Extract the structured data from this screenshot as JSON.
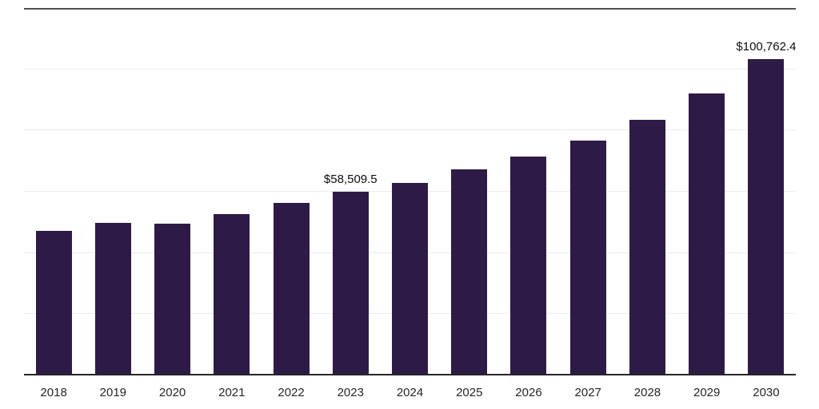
{
  "chart_data": {
    "type": "bar",
    "title": "",
    "xlabel": "",
    "ylabel": "",
    "categories": [
      "2018",
      "2019",
      "2020",
      "2021",
      "2022",
      "2023",
      "2024",
      "2025",
      "2026",
      "2027",
      "2028",
      "2029",
      "2030"
    ],
    "values": [
      46000,
      48600,
      48300,
      51500,
      55000,
      58509.5,
      61400,
      65500,
      69600,
      74700,
      81300,
      89800,
      100762.4
    ],
    "data_labels": {
      "2023": "$58,509.5",
      "2030": "$100,762.4"
    },
    "ylim": [
      0,
      117000
    ],
    "grid": "horizontal",
    "gridline_count": 5,
    "legend": "none",
    "bar_color": "#2e1a47",
    "axis_color": "#262626",
    "top_border_color": "#4f4f4f",
    "gridline_color": "#ececec",
    "label_color": "#0d0d0d",
    "tick_label_color": "#262626"
  }
}
